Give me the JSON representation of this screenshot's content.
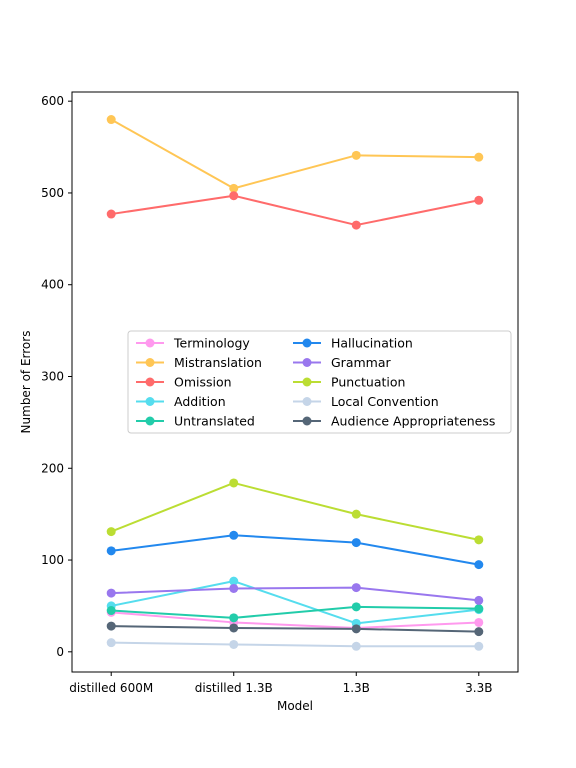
{
  "chart_data": {
    "type": "line",
    "xlabel": "Model",
    "ylabel": "Number of Errors",
    "categories": [
      "distilled 600M",
      "distilled 1.3B",
      "1.3B",
      "3.3B"
    ],
    "ylim": [
      -22,
      610
    ],
    "yticks": [
      0,
      100,
      200,
      300,
      400,
      500,
      600
    ],
    "grid": false,
    "legend_position": "center",
    "series": [
      {
        "name": "Terminology",
        "color": "#ff99ee",
        "values": [
          43,
          32,
          26,
          32
        ]
      },
      {
        "name": "Mistranslation",
        "color": "#ffc655",
        "values": [
          580,
          505,
          541,
          539
        ]
      },
      {
        "name": "Omission",
        "color": "#ff6b6b",
        "values": [
          477,
          497,
          465,
          492
        ]
      },
      {
        "name": "Addition",
        "color": "#55ddee",
        "values": [
          50,
          77,
          31,
          46
        ]
      },
      {
        "name": "Untranslated",
        "color": "#22ccaa",
        "values": [
          45,
          37,
          49,
          47
        ]
      },
      {
        "name": "Hallucination",
        "color": "#2288ee",
        "values": [
          110,
          127,
          119,
          95
        ]
      },
      {
        "name": "Grammar",
        "color": "#9977ee",
        "values": [
          64,
          69,
          70,
          56
        ]
      },
      {
        "name": "Punctuation",
        "color": "#bbdd33",
        "values": [
          131,
          184,
          150,
          122
        ]
      },
      {
        "name": "Local Convention",
        "color": "#c5d5e8",
        "values": [
          10,
          8,
          6,
          6
        ]
      },
      {
        "name": "Audience Appropriateness",
        "color": "#556677",
        "values": [
          28,
          26,
          25,
          22
        ]
      }
    ]
  }
}
